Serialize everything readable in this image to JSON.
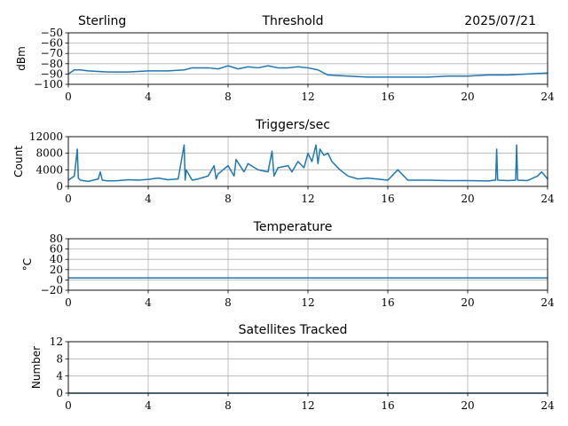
{
  "header": {
    "station": "Sterling",
    "date": "2025/07/21"
  },
  "colors": {
    "series": "#1f77b4",
    "grid": "#b0b0b0",
    "axis": "#000000"
  },
  "chart_data": [
    {
      "type": "line",
      "title": "Threshold",
      "ylabel": "dBm",
      "xlim": [
        0,
        24
      ],
      "ylim": [
        -100,
        -50
      ],
      "xticks": [
        0,
        4,
        8,
        12,
        16,
        20,
        24
      ],
      "yticks": [
        -100,
        -90,
        -80,
        -70,
        -60,
        -50
      ],
      "ytick_labels": [
        "−100",
        "−90",
        "−80",
        "−70",
        "−60",
        "−50"
      ],
      "grid": true,
      "series": [
        {
          "x": [
            0,
            0.3,
            0.6,
            1,
            2,
            3,
            4,
            5,
            5.8,
            6.2,
            7,
            7.5,
            8,
            8.5,
            9,
            9.5,
            10,
            10.5,
            11,
            11.5,
            12,
            12.5,
            13,
            14,
            15,
            16,
            17,
            18,
            19,
            20,
            21,
            22,
            23,
            24
          ],
          "y": [
            -90,
            -86,
            -86,
            -87,
            -88,
            -88,
            -87,
            -87,
            -86,
            -84,
            -84,
            -85,
            -82,
            -85,
            -83,
            -84,
            -82,
            -84,
            -84,
            -83,
            -84,
            -86,
            -91,
            -92,
            -93,
            -93,
            -93,
            -93,
            -92,
            -92,
            -91,
            -91,
            -90,
            -89
          ]
        }
      ]
    },
    {
      "type": "line",
      "title": "Triggers/sec",
      "ylabel": "Count",
      "xlim": [
        0,
        24
      ],
      "ylim": [
        0,
        12000
      ],
      "xticks": [
        0,
        4,
        8,
        12,
        16,
        20,
        24
      ],
      "yticks": [
        0,
        4000,
        8000,
        12000
      ],
      "grid": true,
      "series": [
        {
          "x": [
            0,
            0.3,
            0.45,
            0.5,
            0.6,
            1,
            1.5,
            1.6,
            1.7,
            2,
            2.5,
            3,
            3.5,
            4,
            4.5,
            5,
            5.5,
            5.8,
            5.85,
            5.9,
            6.2,
            6.5,
            7,
            7.3,
            7.4,
            7.5,
            8,
            8.3,
            8.4,
            8.8,
            9,
            9.5,
            10,
            10.2,
            10.3,
            10.5,
            11,
            11.2,
            11.5,
            11.8,
            12,
            12.2,
            12.4,
            12.5,
            12.6,
            12.8,
            13,
            13.2,
            13.4,
            13.6,
            14,
            14.5,
            15,
            16,
            16.5,
            17,
            18,
            19,
            20,
            21,
            21.4,
            21.45,
            21.5,
            22,
            22.4,
            22.45,
            22.5,
            23,
            23.5,
            23.7,
            24
          ],
          "y": [
            1500,
            2500,
            9000,
            2000,
            1500,
            1200,
            1800,
            3500,
            1500,
            1300,
            1400,
            1600,
            1500,
            1700,
            2000,
            1600,
            1800,
            10000,
            1500,
            4000,
            1500,
            1800,
            2500,
            5000,
            1800,
            3000,
            5000,
            2500,
            6500,
            3500,
            5500,
            4000,
            3500,
            8500,
            2500,
            4500,
            5000,
            3500,
            6000,
            4500,
            8000,
            6000,
            10000,
            5500,
            9000,
            7500,
            8000,
            6000,
            5000,
            4000,
            2500,
            1800,
            2000,
            1500,
            4000,
            1500,
            1500,
            1400,
            1400,
            1300,
            1500,
            9000,
            1500,
            1400,
            1500,
            10000,
            1500,
            1400,
            2500,
            3500,
            1800
          ]
        }
      ]
    },
    {
      "type": "line",
      "title": "Temperature",
      "ylabel": "°C",
      "xlim": [
        0,
        24
      ],
      "ylim": [
        -20,
        80
      ],
      "xticks": [
        0,
        4,
        8,
        12,
        16,
        20,
        24
      ],
      "yticks": [
        -20,
        0,
        20,
        40,
        60,
        80
      ],
      "ytick_labels": [
        "−20",
        "0",
        "20",
        "40",
        "60",
        "80"
      ],
      "grid": true,
      "series": [
        {
          "x": [
            0,
            24
          ],
          "y": [
            4,
            4
          ]
        }
      ]
    },
    {
      "type": "line",
      "title": "Satellites Tracked",
      "ylabel": "Number",
      "xlim": [
        0,
        24
      ],
      "ylim": [
        0,
        12
      ],
      "xticks": [
        0,
        4,
        8,
        12,
        16,
        20,
        24
      ],
      "yticks": [
        0,
        4,
        8,
        12
      ],
      "grid": true,
      "series": [
        {
          "x": [
            0,
            24
          ],
          "y": [
            0,
            0
          ]
        }
      ]
    }
  ]
}
